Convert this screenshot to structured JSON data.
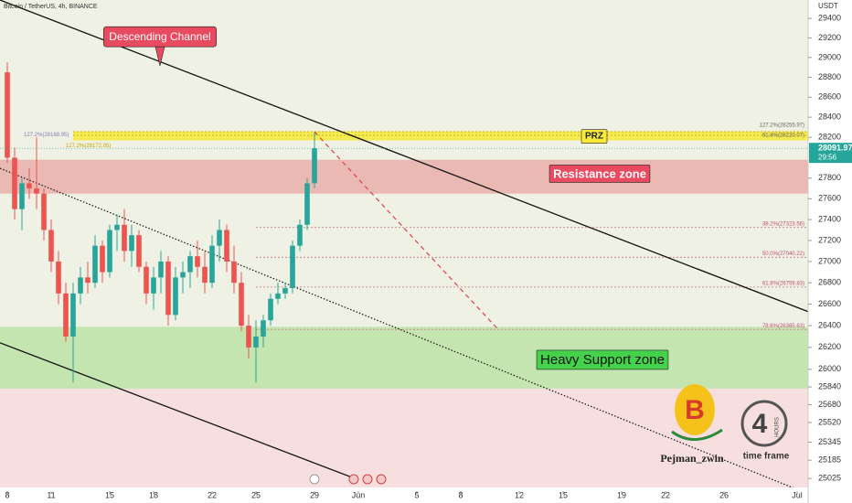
{
  "chart_data": {
    "type": "candlestick",
    "title": "Bitcoin / TetherUS, 4h, BINANCE",
    "y_axis_label": "USDT",
    "log_scale": true,
    "xlim": [
      -0.5,
      54.75
    ],
    "ylim": [
      24890,
      29590
    ],
    "xticks": [
      {
        "value": 0,
        "label": "8"
      },
      {
        "value": 3,
        "label": "11"
      },
      {
        "value": 7,
        "label": "15"
      },
      {
        "value": 10,
        "label": "18"
      },
      {
        "value": 14,
        "label": "22"
      },
      {
        "value": 17,
        "label": "25"
      },
      {
        "value": 21,
        "label": "29"
      },
      {
        "value": 24,
        "label": "Jun"
      },
      {
        "value": 28,
        "label": "5"
      },
      {
        "value": 31,
        "label": "8"
      },
      {
        "value": 35,
        "label": "12"
      },
      {
        "value": 38,
        "label": "15"
      },
      {
        "value": 42,
        "label": "19"
      },
      {
        "value": 45,
        "label": "22"
      },
      {
        "value": 49,
        "label": "26"
      },
      {
        "value": 54,
        "label": "Jul"
      }
    ],
    "yticks": [
      29400,
      29200,
      29000,
      28800,
      28600,
      28400,
      28200,
      27800,
      27600,
      27400,
      27200,
      27000,
      26800,
      26600,
      26400,
      26200,
      26000,
      25840,
      25680,
      25520,
      25345,
      25185,
      25025
    ],
    "up_color": "#26a69a",
    "down_color": "#ef5350",
    "x": [
      0,
      0.5,
      1,
      1.5,
      2,
      2.5,
      3,
      3.5,
      4,
      4.5,
      5,
      5.5,
      6,
      6.5,
      7,
      7.5,
      8,
      8.5,
      9,
      9.5,
      10,
      10.5,
      11,
      11.5,
      12,
      12.5,
      13,
      13.5,
      14,
      14.5,
      15,
      15.5,
      16,
      16.5,
      17,
      17.5,
      18,
      18.5,
      19,
      19.5,
      20,
      20.5,
      21
    ],
    "open": [
      28850,
      28000,
      27500,
      27750,
      27700,
      27650,
      27300,
      27000,
      26700,
      26300,
      26700,
      26850,
      26800,
      27150,
      26900,
      27300,
      27350,
      27100,
      27250,
      26950,
      26700,
      26850,
      27000,
      26500,
      26850,
      26900,
      27050,
      26950,
      26800,
      27150,
      27300,
      27000,
      26800,
      26400,
      26200,
      26300,
      26450,
      26650,
      26700,
      26750,
      27150,
      27350,
      27750
    ],
    "high": [
      28950,
      28100,
      27800,
      27900,
      28200,
      27700,
      27400,
      27100,
      26800,
      26800,
      26950,
      27000,
      27250,
      27200,
      27350,
      27450,
      27500,
      27350,
      27300,
      27000,
      26950,
      27100,
      27050,
      26950,
      27000,
      27100,
      27200,
      27100,
      27250,
      27400,
      27350,
      27150,
      26900,
      26500,
      26450,
      26500,
      26700,
      26800,
      26800,
      27200,
      27400,
      27800,
      28250
    ],
    "low": [
      27950,
      27400,
      27300,
      27600,
      27500,
      27200,
      26900,
      26600,
      26250,
      25880,
      26600,
      26700,
      26750,
      26800,
      26850,
      27100,
      27000,
      26950,
      26900,
      26600,
      26550,
      26700,
      26400,
      26450,
      26700,
      26750,
      26850,
      26700,
      26750,
      27000,
      26900,
      26700,
      26350,
      26100,
      25880,
      26200,
      26400,
      26600,
      26650,
      26700,
      27100,
      27300,
      27700
    ],
    "close": [
      28000,
      27500,
      27750,
      27700,
      27650,
      27300,
      27000,
      26700,
      26300,
      26700,
      26850,
      26800,
      27150,
      26900,
      27300,
      27350,
      27100,
      27250,
      26950,
      26700,
      26850,
      27000,
      26500,
      26850,
      26900,
      27050,
      26950,
      26800,
      27150,
      27300,
      27000,
      26800,
      26400,
      26200,
      26300,
      26450,
      26650,
      26700,
      26750,
      27150,
      27350,
      27750,
      28091.97
    ],
    "last_price": {
      "value": 28091.97,
      "label": "28091.97",
      "countdown": "29:56"
    },
    "zones": [
      {
        "label": "PRZ",
        "range": [
          28170,
          28260
        ],
        "color": "#f7e93a"
      },
      {
        "label": "Resistance zone",
        "range": [
          27650,
          27980
        ],
        "color": "#eab3ad"
      },
      {
        "label": "Heavy Support zone",
        "range": [
          25825,
          26390
        ],
        "color": "#bfe3aa"
      }
    ],
    "lines": [
      {
        "name": "Descending Channel",
        "points": [
          [
            -0.5,
            29590
          ],
          [
            54.75,
            26530
          ]
        ],
        "style": "solid"
      },
      {
        "points": [
          [
            -0.5,
            26242
          ],
          [
            23.56,
            25034
          ]
        ],
        "style": "solid"
      },
      {
        "points": [
          [
            -0.5,
            27896
          ],
          [
            54.75,
            24890
          ]
        ],
        "style": "dotted"
      },
      {
        "points": [
          [
            21,
            28256
          ],
          [
            33.56,
            26365
          ]
        ],
        "style": "dashed"
      }
    ],
    "fib_levels": [
      {
        "label": "127.2%(28255.97)",
        "price": 28255.97
      },
      {
        "label": "61.8%(28220.07)",
        "price": 28220.07
      },
      {
        "label": "38.2%(27323.56)",
        "price": 27323.56
      },
      {
        "label": "50.0%(27040.22)",
        "price": 27040.22
      },
      {
        "label": "61.8%(26759.83)",
        "price": 26759.83
      },
      {
        "label": "78.6%(26365.63)",
        "price": 26365.63
      }
    ],
    "left_fib_labels": [
      {
        "label": "127.2%(28188.95)",
        "price": 28188.95
      },
      {
        "label": "127.2%(28172.05)",
        "price": 28172.05
      }
    ],
    "watermark": {
      "author": "Pejman_zwin",
      "timeframe": "4",
      "hours": "HOURS",
      "caption": "time frame"
    }
  }
}
